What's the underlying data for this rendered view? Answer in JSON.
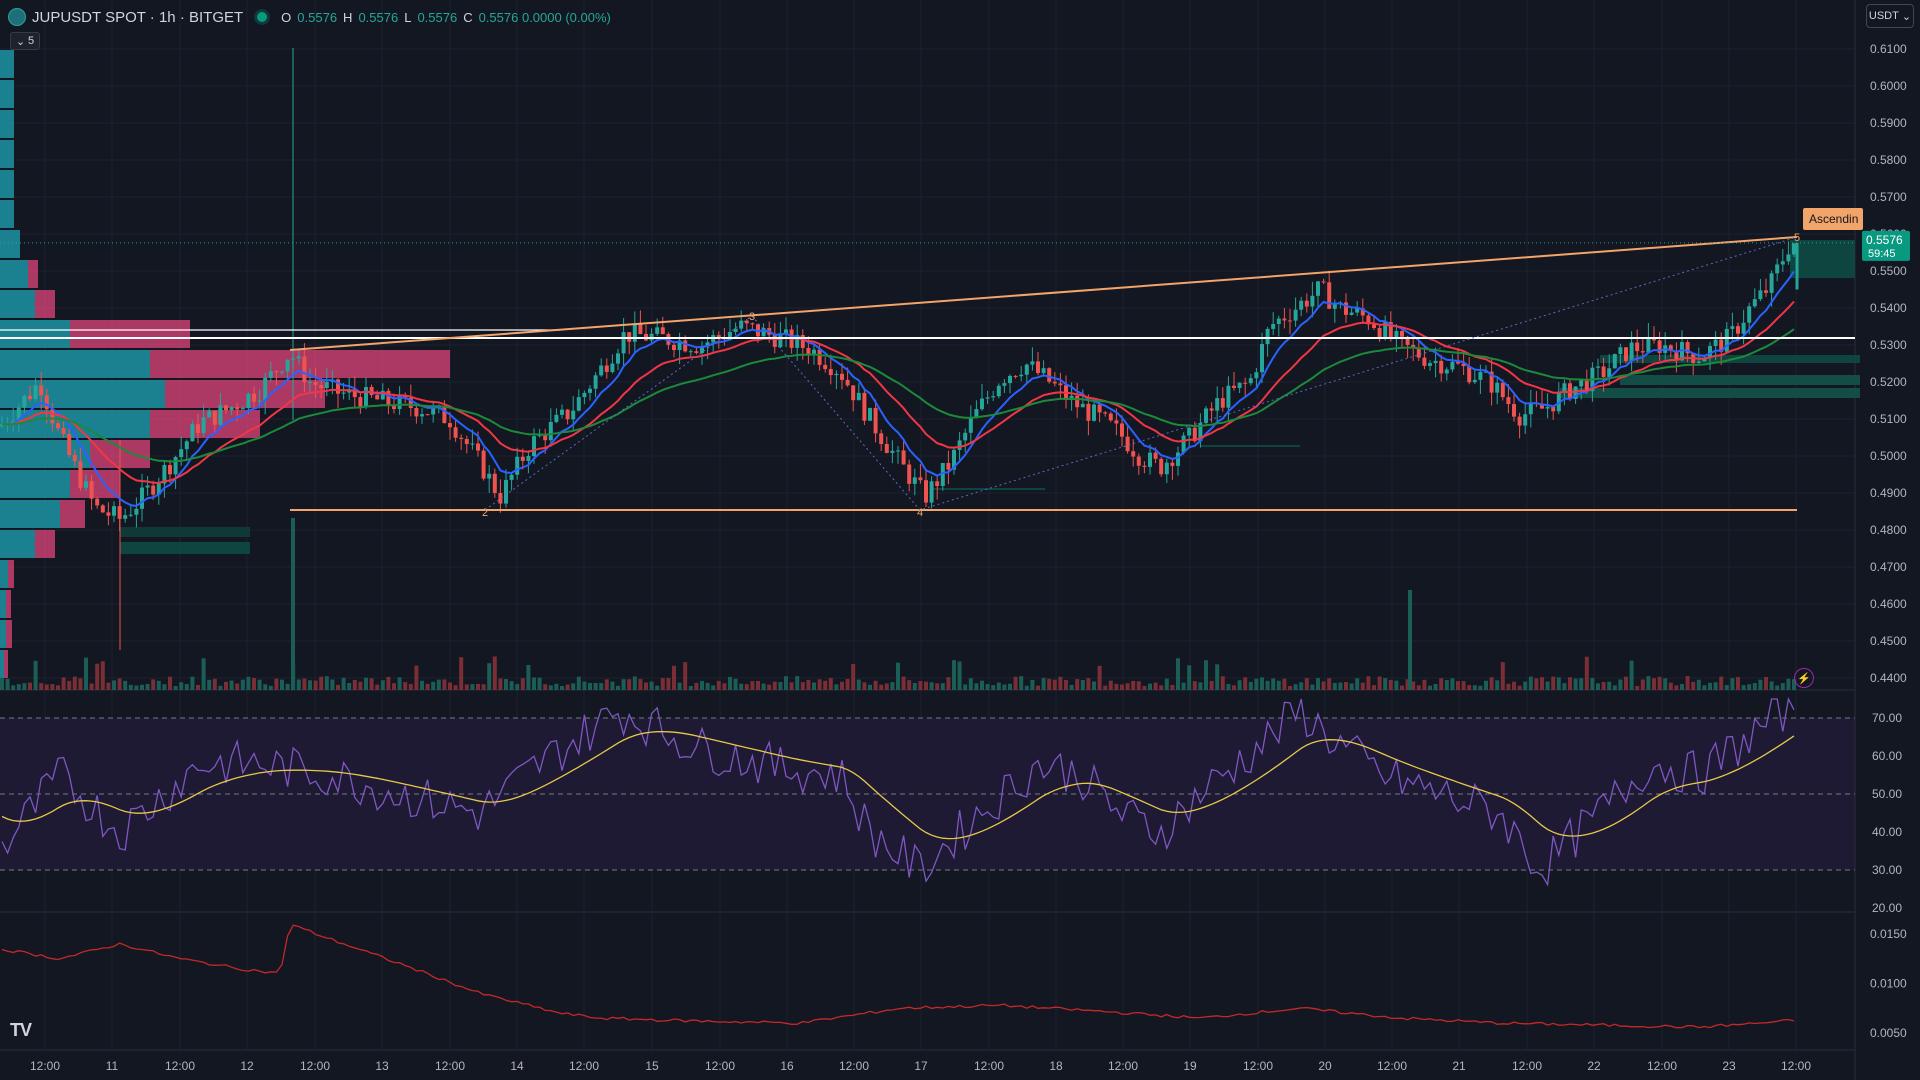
{
  "header": {
    "symbol_title": "JUPUSDT SPOT · 1h · BITGET",
    "ohlc": [
      {
        "k": "O",
        "v": "0.5576"
      },
      {
        "k": "H",
        "v": "0.5576"
      },
      {
        "k": "L",
        "v": "0.5576"
      },
      {
        "k": "C",
        "v": "0.5576 0.0000 (0.00%)"
      }
    ],
    "collapse_label": "5",
    "currency": "USDT"
  },
  "price_axis": {
    "ticks": [
      "0.6100",
      "0.6000",
      "0.5900",
      "0.5800",
      "0.5700",
      "0.5600",
      "0.5500",
      "0.5400",
      "0.5300",
      "0.5200",
      "0.5100",
      "0.5000",
      "0.4900",
      "0.4800",
      "0.4700",
      "0.4600",
      "0.4500",
      "0.4400"
    ],
    "last_price": "0.5576",
    "countdown": "59:45",
    "pattern_label": "Ascendin"
  },
  "rsi_axis": {
    "ticks": [
      "70.00",
      "60.00",
      "50.00",
      "40.00",
      "30.00",
      "20.00"
    ]
  },
  "lower_axis": {
    "ticks": [
      "0.0150",
      "0.0100",
      "0.0050"
    ]
  },
  "time_axis": {
    "labels": [
      "12:00",
      "11",
      "12:00",
      "12",
      "12:00",
      "13",
      "12:00",
      "14",
      "12:00",
      "15",
      "12:00",
      "16",
      "12:00",
      "17",
      "12:00",
      "18",
      "12:00",
      "19",
      "12:00",
      "20",
      "12:00",
      "21",
      "12:00",
      "22",
      "12:00",
      "23",
      "12:00"
    ]
  },
  "pattern_points": [
    "2",
    "3",
    "4",
    "5"
  ],
  "colors": {
    "up": "#26a69a",
    "down": "#ef5350",
    "ema_fast": "#2962ff",
    "ema_mid": "#f23645",
    "ema_slow": "#1b8a3a",
    "trend": "#f2a469",
    "rsi": "#7e57c2",
    "rsi_ma": "#e6c84a",
    "atr": "#c62828",
    "vp_up": "#1fa6b5",
    "vp_down": "#e0457b"
  }
}
